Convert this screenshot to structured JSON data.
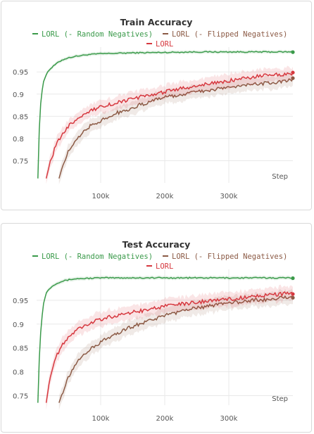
{
  "chart_data": [
    {
      "type": "line",
      "title": "Train Accuracy",
      "xlabel": "Step",
      "ylabel": "",
      "xlim": [
        0,
        400000
      ],
      "ylim": [
        0.7,
        0.99
      ],
      "xticks": [
        100000,
        200000,
        300000
      ],
      "xtick_labels": [
        "100k",
        "200k",
        "300k"
      ],
      "yticks": [
        0.75,
        0.8,
        0.85,
        0.9,
        0.95
      ],
      "ytick_labels": [
        "0.75",
        "0.8",
        "0.85",
        "0.9",
        "0.95"
      ],
      "grid": true,
      "legend_position": "top",
      "series": [
        {
          "name": "LORL (- Random Negatives)",
          "color": "#3a9a4a",
          "x": [
            2000,
            5000,
            10000,
            15000,
            20000,
            30000,
            40000,
            50000,
            60000,
            80000,
            100000,
            150000,
            200000,
            250000,
            300000,
            350000,
            400000
          ],
          "y": [
            0.71,
            0.86,
            0.925,
            0.945,
            0.955,
            0.968,
            0.977,
            0.982,
            0.985,
            0.989,
            0.991,
            0.993,
            0.994,
            0.995,
            0.995,
            0.995,
            0.995
          ]
        },
        {
          "name": "LORL (- Flipped Negatives)",
          "color": "#8b5a45",
          "x": [
            35000,
            40000,
            50000,
            60000,
            70000,
            80000,
            100000,
            120000,
            140000,
            160000,
            180000,
            200000,
            220000,
            240000,
            260000,
            280000,
            300000,
            320000,
            340000,
            360000,
            380000,
            400000
          ],
          "y": [
            0.71,
            0.735,
            0.775,
            0.795,
            0.812,
            0.825,
            0.84,
            0.855,
            0.864,
            0.875,
            0.884,
            0.893,
            0.897,
            0.903,
            0.907,
            0.911,
            0.915,
            0.919,
            0.922,
            0.925,
            0.928,
            0.932
          ]
        },
        {
          "name": "LORL",
          "color": "#d6383f",
          "x": [
            15000,
            20000,
            30000,
            40000,
            50000,
            60000,
            70000,
            80000,
            100000,
            120000,
            140000,
            160000,
            180000,
            200000,
            220000,
            240000,
            260000,
            280000,
            300000,
            320000,
            340000,
            360000,
            380000,
            400000
          ],
          "y": [
            0.71,
            0.74,
            0.785,
            0.81,
            0.828,
            0.84,
            0.851,
            0.86,
            0.871,
            0.879,
            0.886,
            0.893,
            0.898,
            0.905,
            0.911,
            0.916,
            0.921,
            0.926,
            0.93,
            0.935,
            0.939,
            0.942,
            0.944,
            0.947
          ]
        }
      ]
    },
    {
      "type": "line",
      "title": "Test Accuracy",
      "xlabel": "Step",
      "ylabel": "",
      "xlim": [
        0,
        400000
      ],
      "ylim": [
        0.73,
        1.0
      ],
      "xticks": [
        100000,
        200000,
        300000
      ],
      "xtick_labels": [
        "100k",
        "200k",
        "300k"
      ],
      "yticks": [
        0.75,
        0.8,
        0.85,
        0.9,
        0.95
      ],
      "ytick_labels": [
        "0.75",
        "0.8",
        "0.85",
        "0.9",
        "0.95"
      ],
      "grid": true,
      "legend_position": "top",
      "series": [
        {
          "name": "LORL (- Random Negatives)",
          "color": "#3a9a4a",
          "x": [
            2000,
            5000,
            10000,
            15000,
            20000,
            30000,
            40000,
            50000,
            60000,
            80000,
            100000,
            150000,
            200000,
            250000,
            300000,
            350000,
            400000
          ],
          "y": [
            0.735,
            0.86,
            0.94,
            0.965,
            0.975,
            0.985,
            0.99,
            0.993,
            0.995,
            0.996,
            0.997,
            0.997,
            0.997,
            0.997,
            0.997,
            0.997,
            0.997
          ]
        },
        {
          "name": "LORL (- Flipped Negatives)",
          "color": "#8b5a45",
          "x": [
            35000,
            40000,
            50000,
            60000,
            70000,
            80000,
            100000,
            120000,
            140000,
            160000,
            180000,
            200000,
            220000,
            240000,
            260000,
            280000,
            300000,
            320000,
            340000,
            360000,
            380000,
            400000
          ],
          "y": [
            0.735,
            0.755,
            0.79,
            0.815,
            0.83,
            0.843,
            0.862,
            0.877,
            0.89,
            0.9,
            0.91,
            0.918,
            0.925,
            0.931,
            0.936,
            0.941,
            0.944,
            0.947,
            0.95,
            0.952,
            0.954,
            0.956
          ]
        },
        {
          "name": "LORL",
          "color": "#d6383f",
          "x": [
            15000,
            20000,
            25000,
            30000,
            40000,
            50000,
            60000,
            70000,
            80000,
            100000,
            120000,
            140000,
            160000,
            180000,
            200000,
            220000,
            240000,
            260000,
            280000,
            300000,
            320000,
            340000,
            360000,
            380000,
            400000
          ],
          "y": [
            0.735,
            0.78,
            0.81,
            0.83,
            0.857,
            0.874,
            0.885,
            0.893,
            0.9,
            0.91,
            0.917,
            0.922,
            0.927,
            0.932,
            0.937,
            0.941,
            0.944,
            0.947,
            0.95,
            0.952,
            0.955,
            0.958,
            0.961,
            0.963,
            0.966
          ]
        }
      ]
    }
  ]
}
